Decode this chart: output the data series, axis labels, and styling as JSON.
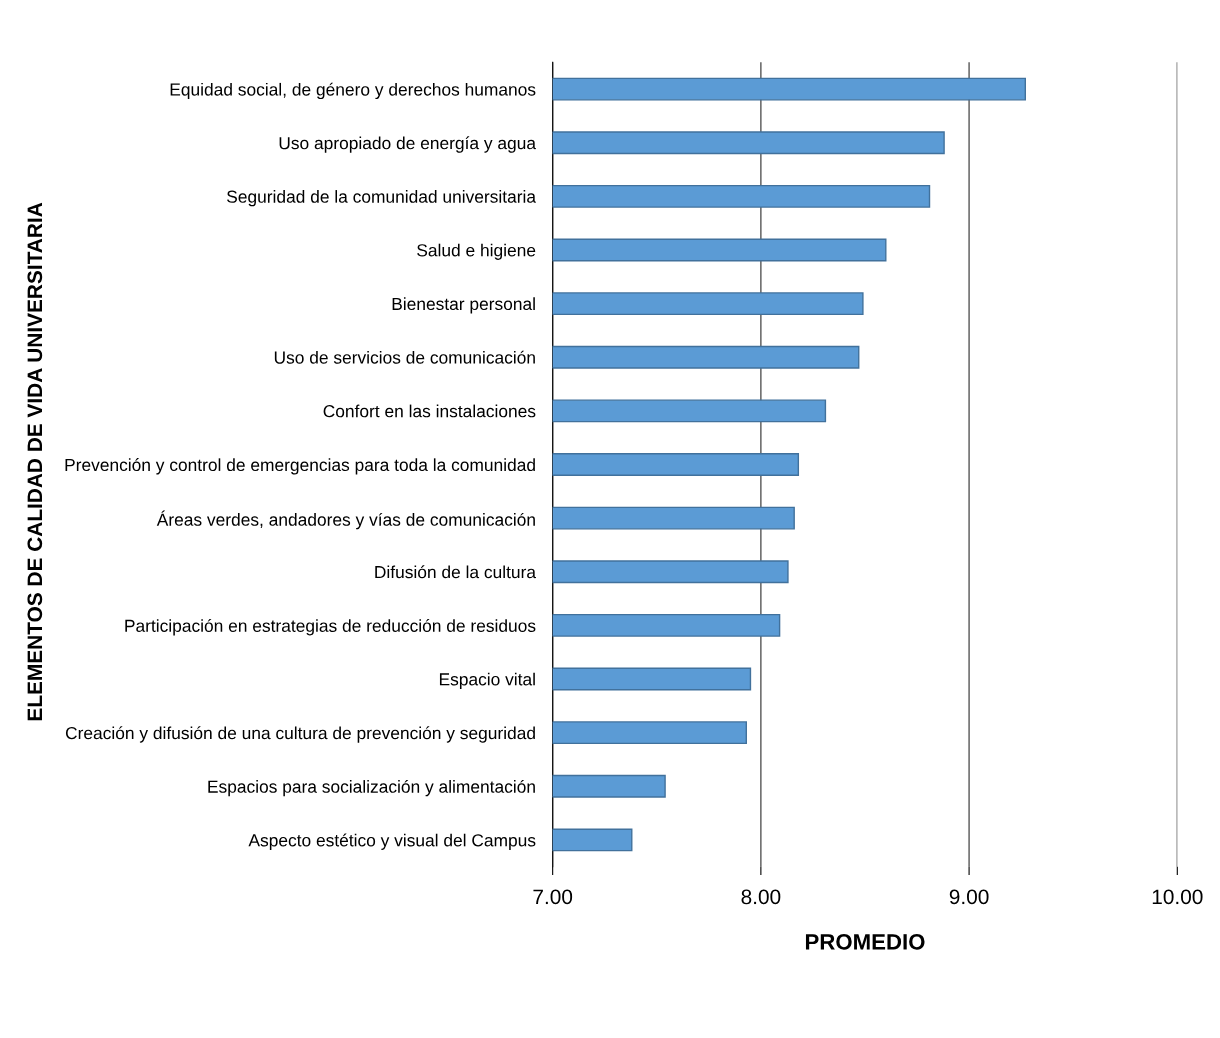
{
  "chart_data": {
    "type": "bar",
    "orientation": "horizontal",
    "xlabel": "PROMEDIO",
    "ylabel": "ELEMENTOS DE CALIDAD DE VIDA UNIVERSITARIA",
    "categories": [
      "Equidad social, de género y derechos humanos",
      "Uso apropiado de energía y agua",
      "Seguridad de la comunidad universitaria",
      "Salud e higiene",
      "Bienestar personal",
      "Uso de servicios de comunicación",
      "Confort en las instalaciones",
      "Prevención y control de emergencias para toda la comunidad",
      "Áreas verdes, andadores y vías de comunicación",
      "Difusión de la cultura",
      "Participación en estrategias de reducción de residuos",
      "Espacio vital",
      "Creación y difusión de una cultura de prevención y seguridad",
      "Espacios para socialización y alimentación",
      "Aspecto estético y visual del Campus"
    ],
    "values": [
      9.27,
      8.88,
      8.81,
      8.6,
      8.49,
      8.47,
      8.31,
      8.18,
      8.16,
      8.13,
      8.09,
      7.95,
      7.93,
      7.54,
      7.38
    ],
    "color": "#5b9bd5",
    "xlim": [
      7,
      10
    ],
    "xticks": [
      {
        "value": 7,
        "label": "7.00"
      },
      {
        "value": 8,
        "label": "8.00"
      },
      {
        "value": 9,
        "label": "9.00"
      },
      {
        "value": 10,
        "label": "10.00"
      }
    ],
    "grid": "x",
    "legend": false
  }
}
